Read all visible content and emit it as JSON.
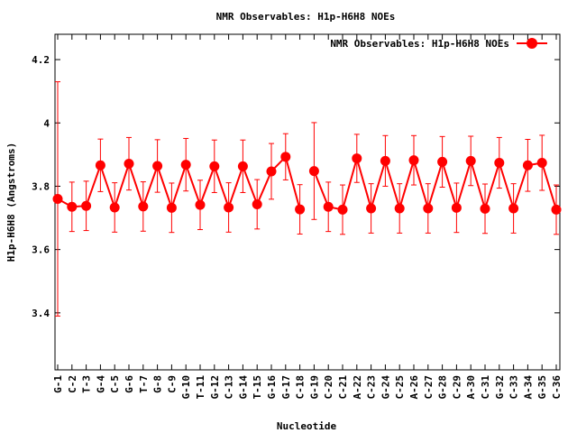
{
  "chart_data": {
    "type": "line",
    "title": "NMR Observables: H1p-H6H8 NOEs",
    "xlabel": "Nucleotide",
    "ylabel": "H1p-H6H8 (Angstroms)",
    "ylim": [
      3.22,
      4.28
    ],
    "yticks": [
      "3.4",
      "3.6",
      "3.8",
      "4",
      "4.2"
    ],
    "legend_position": "top-right",
    "color": "#ff0000",
    "grid": false,
    "series": [
      {
        "name": "NMR Observables: H1p-H6H8 NOEs",
        "points": [
          {
            "label": "G-1",
            "value": 3.76,
            "err": 0.37
          },
          {
            "label": "C-2",
            "value": 3.735,
            "err": 0.078
          },
          {
            "label": "T-3",
            "value": 3.738,
            "err": 0.078
          },
          {
            "label": "G-4",
            "value": 3.866,
            "err": 0.083
          },
          {
            "label": "C-5",
            "value": 3.733,
            "err": 0.078
          },
          {
            "label": "G-6",
            "value": 3.871,
            "err": 0.083
          },
          {
            "label": "T-7",
            "value": 3.736,
            "err": 0.078
          },
          {
            "label": "G-8",
            "value": 3.864,
            "err": 0.083
          },
          {
            "label": "C-9",
            "value": 3.732,
            "err": 0.078
          },
          {
            "label": "G-10",
            "value": 3.868,
            "err": 0.083
          },
          {
            "label": "T-11",
            "value": 3.741,
            "err": 0.078
          },
          {
            "label": "G-12",
            "value": 3.863,
            "err": 0.083
          },
          {
            "label": "C-13",
            "value": 3.733,
            "err": 0.078
          },
          {
            "label": "G-14",
            "value": 3.863,
            "err": 0.083
          },
          {
            "label": "T-15",
            "value": 3.743,
            "err": 0.078
          },
          {
            "label": "G-16",
            "value": 3.847,
            "err": 0.088
          },
          {
            "label": "G-17",
            "value": 3.893,
            "err": 0.073
          },
          {
            "label": "C-18",
            "value": 3.727,
            "err": 0.078
          },
          {
            "label": "G-19",
            "value": 3.848,
            "err": 0.153
          },
          {
            "label": "C-20",
            "value": 3.735,
            "err": 0.078
          },
          {
            "label": "C-21",
            "value": 3.726,
            "err": 0.078
          },
          {
            "label": "A-22",
            "value": 3.888,
            "err": 0.076
          },
          {
            "label": "C-23",
            "value": 3.73,
            "err": 0.078
          },
          {
            "label": "G-24",
            "value": 3.88,
            "err": 0.08
          },
          {
            "label": "C-25",
            "value": 3.73,
            "err": 0.078
          },
          {
            "label": "A-26",
            "value": 3.882,
            "err": 0.078
          },
          {
            "label": "C-27",
            "value": 3.73,
            "err": 0.078
          },
          {
            "label": "G-28",
            "value": 3.877,
            "err": 0.08
          },
          {
            "label": "C-29",
            "value": 3.732,
            "err": 0.078
          },
          {
            "label": "A-30",
            "value": 3.88,
            "err": 0.078
          },
          {
            "label": "C-31",
            "value": 3.729,
            "err": 0.078
          },
          {
            "label": "G-32",
            "value": 3.874,
            "err": 0.08
          },
          {
            "label": "C-33",
            "value": 3.73,
            "err": 0.078
          },
          {
            "label": "A-34",
            "value": 3.866,
            "err": 0.082
          },
          {
            "label": "G-35",
            "value": 3.874,
            "err": 0.087
          },
          {
            "label": "C-36",
            "value": 3.726,
            "err": 0.078
          }
        ]
      }
    ]
  }
}
